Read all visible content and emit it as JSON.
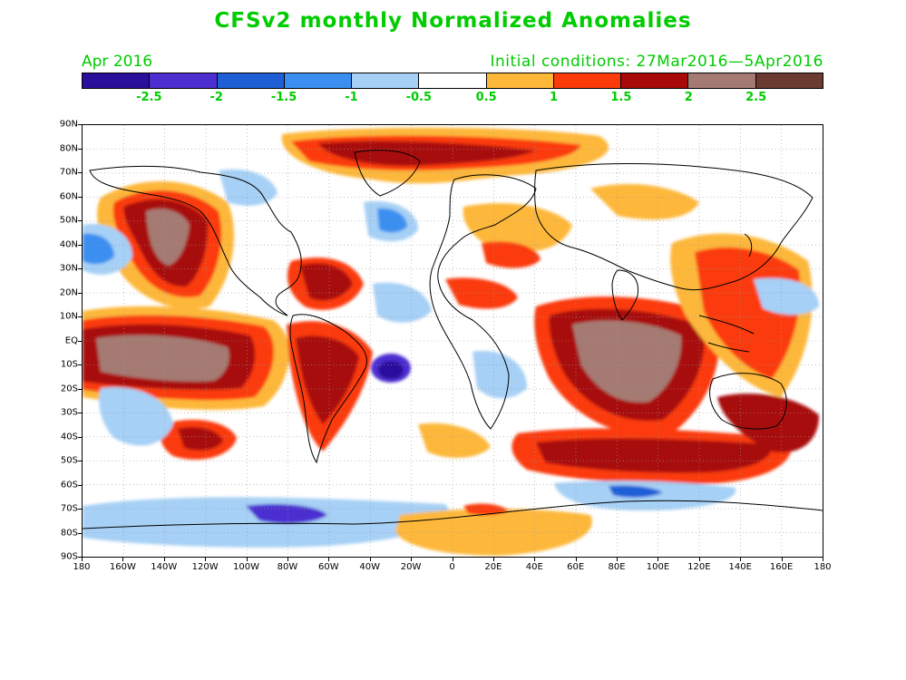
{
  "title": "CFSv2 monthly Normalized Anomalies",
  "month_label": "Apr 2016",
  "initial_conditions": "Initial conditions: 27Mar2016—5Apr2016",
  "colorbar": {
    "colors": [
      "#2a0f9c",
      "#4b2fd0",
      "#1f5fd6",
      "#3a8ff0",
      "#a6d0f5",
      "#ffffff",
      "#fdb83a",
      "#fb3a0a",
      "#a80a0a",
      "#a57a72",
      "#6b3a30"
    ],
    "labels": [
      "-2.5",
      "-2",
      "-1.5",
      "-1",
      "-0.5",
      "0.5",
      "1",
      "1.5",
      "2",
      "2.5"
    ]
  },
  "latitude_labels": [
    "90N",
    "80N",
    "70N",
    "60N",
    "50N",
    "40N",
    "30N",
    "20N",
    "10N",
    "EQ",
    "10S",
    "20S",
    "30S",
    "40S",
    "50S",
    "60S",
    "70S",
    "80S",
    "90S"
  ],
  "longitude_labels": [
    "180",
    "160W",
    "140W",
    "120W",
    "100W",
    "80W",
    "60W",
    "40W",
    "20W",
    "0",
    "20E",
    "40E",
    "60E",
    "80E",
    "100E",
    "120E",
    "140E",
    "160E",
    "180"
  ]
}
